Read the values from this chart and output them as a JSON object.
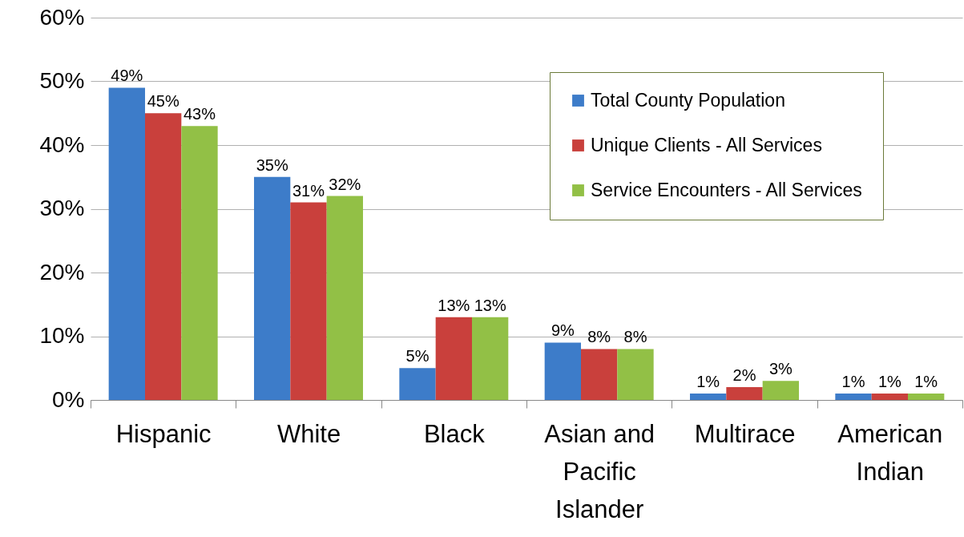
{
  "chart_data": {
    "type": "bar",
    "categories": [
      "Hispanic",
      "White",
      "Black",
      "Asian and Pacific Islander",
      "Multirace",
      "American Indian"
    ],
    "series": [
      {
        "name": "Total County Population",
        "color": "#3d7cc9",
        "values": [
          49,
          35,
          5,
          9,
          1,
          1
        ],
        "value_labels": [
          "49%",
          "35%",
          "5%",
          "9%",
          "1%",
          "1%"
        ]
      },
      {
        "name": "Unique Clients - All Services",
        "color": "#c9403c",
        "values": [
          45,
          31,
          13,
          8,
          2,
          1
        ],
        "value_labels": [
          "45%",
          "31%",
          "13%",
          "8%",
          "2%",
          "1%"
        ]
      },
      {
        "name": "Service Encounters - All Services",
        "color": "#92c046",
        "values": [
          43,
          32,
          13,
          8,
          3,
          1
        ],
        "value_labels": [
          "43%",
          "32%",
          "13%",
          "8%",
          "3%",
          "1%"
        ]
      }
    ],
    "ylim": [
      0,
      60
    ],
    "yticks": [
      {
        "value": 0,
        "label": "0%"
      },
      {
        "value": 10,
        "label": "10%"
      },
      {
        "value": 20,
        "label": "20%"
      },
      {
        "value": 30,
        "label": "30%"
      },
      {
        "value": 40,
        "label": "40%"
      },
      {
        "value": 50,
        "label": "50%"
      },
      {
        "value": 60,
        "label": "60%"
      }
    ],
    "grid": "y",
    "legend": "top right"
  }
}
